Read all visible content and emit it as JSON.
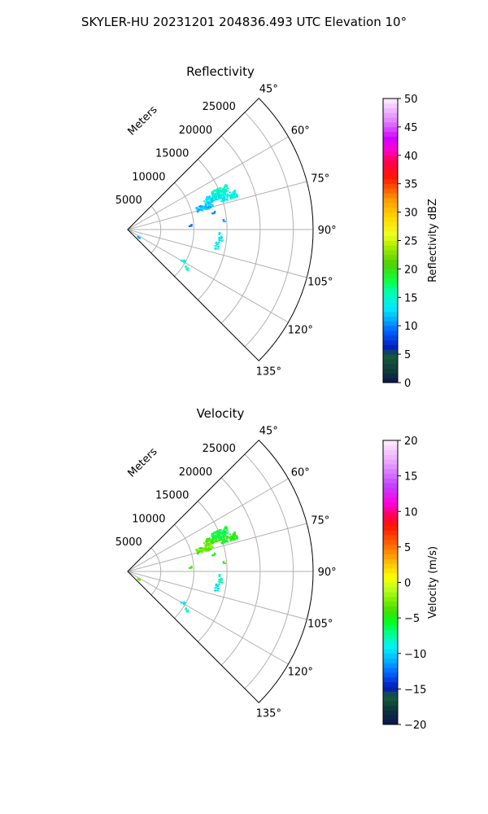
{
  "suptitle": "SKYLER-HU  20231201  204836.493 UTC Elevation 10°",
  "chart_data": [
    {
      "type": "polar-sector",
      "title": "Reflectivity",
      "range_label": "Meters",
      "theta_range_deg": [
        45,
        135
      ],
      "theta_ticks_deg": [
        45,
        60,
        75,
        90,
        105,
        120,
        135
      ],
      "theta_tick_labels": [
        "45°",
        "60°",
        "75°",
        "90°",
        "105°",
        "120°",
        "135°"
      ],
      "r_max": 28000,
      "r_ticks": [
        5000,
        10000,
        15000,
        20000,
        25000
      ],
      "r_tick_labels": [
        "5000",
        "10000",
        "15000",
        "20000",
        "25000"
      ],
      "grid": true,
      "colorbar": {
        "label": "Reflectivity dBZ",
        "vmin": 0,
        "vmax": 50,
        "ticks": [
          0,
          5,
          10,
          15,
          20,
          25,
          30,
          35,
          40,
          45,
          50
        ],
        "tick_labels": [
          "0",
          "5",
          "10",
          "15",
          "20",
          "25",
          "30",
          "35",
          "40",
          "45",
          "50"
        ]
      },
      "echoes": [
        {
          "theta_deg": 69,
          "r": 13500,
          "value": 13,
          "extent": "main cluster"
        },
        {
          "theta_deg": 71,
          "r": 16000,
          "value": 14,
          "extent": "main cluster"
        },
        {
          "theta_deg": 73,
          "r": 12000,
          "value": 12,
          "extent": "main cluster"
        },
        {
          "theta_deg": 67,
          "r": 15000,
          "value": 15,
          "extent": "main cluster"
        },
        {
          "theta_deg": 78,
          "r": 13000,
          "value": 10,
          "extent": "stem"
        },
        {
          "theta_deg": 86,
          "r": 9500,
          "value": 10,
          "extent": "isolated"
        },
        {
          "theta_deg": 84,
          "r": 14500,
          "value": 11,
          "extent": "scattered"
        },
        {
          "theta_deg": 94,
          "r": 14000,
          "value": 13,
          "extent": "line"
        },
        {
          "theta_deg": 100,
          "r": 13500,
          "value": 14,
          "extent": "line"
        },
        {
          "theta_deg": 119,
          "r": 9500,
          "value": 14,
          "extent": "patch"
        },
        {
          "theta_deg": 123,
          "r": 10500,
          "value": 15,
          "extent": "patch"
        },
        {
          "theta_deg": 125,
          "r": 1800,
          "value": 12,
          "extent": "near"
        }
      ]
    },
    {
      "type": "polar-sector",
      "title": "Velocity",
      "range_label": "Meters",
      "theta_range_deg": [
        45,
        135
      ],
      "theta_ticks_deg": [
        45,
        60,
        75,
        90,
        105,
        120,
        135
      ],
      "theta_tick_labels": [
        "45°",
        "60°",
        "75°",
        "90°",
        "105°",
        "120°",
        "135°"
      ],
      "r_max": 28000,
      "r_ticks": [
        5000,
        10000,
        15000,
        20000,
        25000
      ],
      "r_tick_labels": [
        "5000",
        "10000",
        "15000",
        "20000",
        "25000"
      ],
      "grid": true,
      "colorbar": {
        "label": "Velocity (m/s)",
        "vmin": -20,
        "vmax": 20,
        "ticks": [
          -20,
          -15,
          -10,
          -5,
          0,
          5,
          10,
          15,
          20
        ],
        "tick_labels": [
          "−20",
          "−15",
          "−10",
          "−5",
          "0",
          "5",
          "10",
          "15",
          "20"
        ]
      },
      "echoes": [
        {
          "theta_deg": 69,
          "r": 13500,
          "value": -4,
          "extent": "main cluster"
        },
        {
          "theta_deg": 71,
          "r": 16000,
          "value": -5,
          "extent": "main cluster"
        },
        {
          "theta_deg": 73,
          "r": 12000,
          "value": -3,
          "extent": "main cluster"
        },
        {
          "theta_deg": 67,
          "r": 15000,
          "value": -6,
          "extent": "main cluster"
        },
        {
          "theta_deg": 78,
          "r": 13000,
          "value": -5,
          "extent": "stem"
        },
        {
          "theta_deg": 86,
          "r": 9500,
          "value": -3,
          "extent": "isolated"
        },
        {
          "theta_deg": 84,
          "r": 14500,
          "value": -4,
          "extent": "scattered"
        },
        {
          "theta_deg": 94,
          "r": 14000,
          "value": -8,
          "extent": "line"
        },
        {
          "theta_deg": 100,
          "r": 13500,
          "value": -9,
          "extent": "line"
        },
        {
          "theta_deg": 119,
          "r": 9500,
          "value": -9,
          "extent": "patch"
        },
        {
          "theta_deg": 123,
          "r": 10500,
          "value": -8,
          "extent": "patch"
        },
        {
          "theta_deg": 125,
          "r": 1800,
          "value": -2,
          "extent": "near"
        }
      ]
    }
  ]
}
